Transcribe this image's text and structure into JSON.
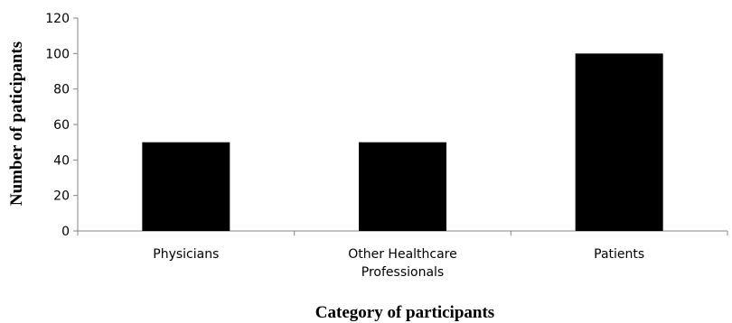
{
  "chart_data": {
    "type": "bar",
    "categories": [
      [
        "Physicians"
      ],
      [
        "Other Healthcare",
        "Professionals"
      ],
      [
        "Patients"
      ]
    ],
    "values": [
      50,
      50,
      100
    ],
    "xlabel": "Category of participants",
    "ylabel": "Number of paticipants",
    "ylim": [
      0,
      120
    ],
    "yticks": [
      0,
      20,
      40,
      60,
      80,
      100,
      120
    ],
    "grid": false,
    "legend": "none",
    "bar_color": "#000000",
    "axis_color": "#868686"
  }
}
